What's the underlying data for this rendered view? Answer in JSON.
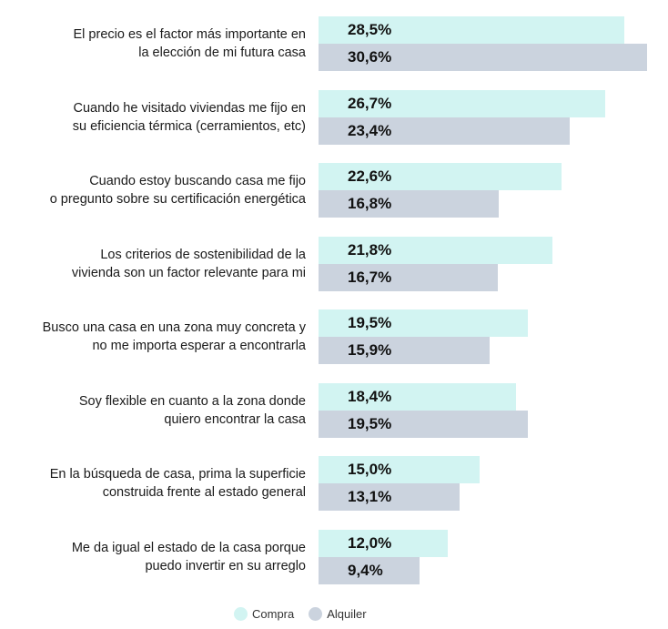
{
  "chart_data": {
    "type": "bar",
    "orientation": "horizontal",
    "categories": [
      [
        "El precio es el factor más importante en",
        "la elección de mi futura casa"
      ],
      [
        "Cuando he visitado viviendas me fijo en",
        "su eficiencia térmica (cerramientos, etc)"
      ],
      [
        "Cuando estoy buscando casa me fijo",
        "o pregunto sobre su certificación energética"
      ],
      [
        "Los criterios de sostenibilidad de la",
        "vivienda son un factor relevante para mi"
      ],
      [
        "Busco una casa en una zona muy concreta y",
        "no me importa esperar a encontrarla"
      ],
      [
        "Soy flexible en cuanto a la zona donde",
        "quiero encontrar la casa"
      ],
      [
        "En la búsqueda de casa, prima la superficie",
        "construida frente al estado general"
      ],
      [
        "Me da igual el estado de la casa porque",
        "puedo invertir en su arreglo"
      ]
    ],
    "series": [
      {
        "name": "Compra",
        "color": "#d2f4f2",
        "values": [
          28.5,
          26.7,
          22.6,
          21.8,
          19.5,
          18.4,
          15.0,
          12.0
        ],
        "labels": [
          "28,5%",
          "26,7%",
          "22,6%",
          "21,8%",
          "19,5%",
          "18,4%",
          "15,0%",
          "12,0%"
        ]
      },
      {
        "name": "Alquiler",
        "color": "#cbd3de",
        "values": [
          30.6,
          23.4,
          16.8,
          16.7,
          15.9,
          19.5,
          13.1,
          9.4
        ],
        "labels": [
          "30,6%",
          "23,4%",
          "16,8%",
          "16,7%",
          "15,9%",
          "19,5%",
          "13,1%",
          "9,4%"
        ]
      }
    ],
    "xlim": [
      0,
      30.6
    ],
    "grid": false,
    "legend": "bottom-center"
  }
}
